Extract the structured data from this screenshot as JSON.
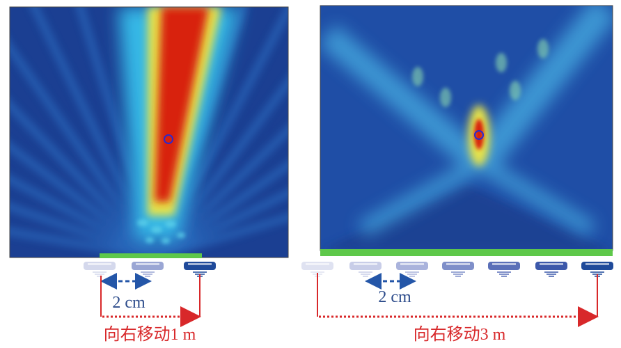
{
  "panels": [
    {
      "spacing_label": "2 cm",
      "move_label": "向右移动1 m"
    },
    {
      "spacing_label": "2 cm",
      "move_label": "向右移动3 m"
    }
  ]
}
